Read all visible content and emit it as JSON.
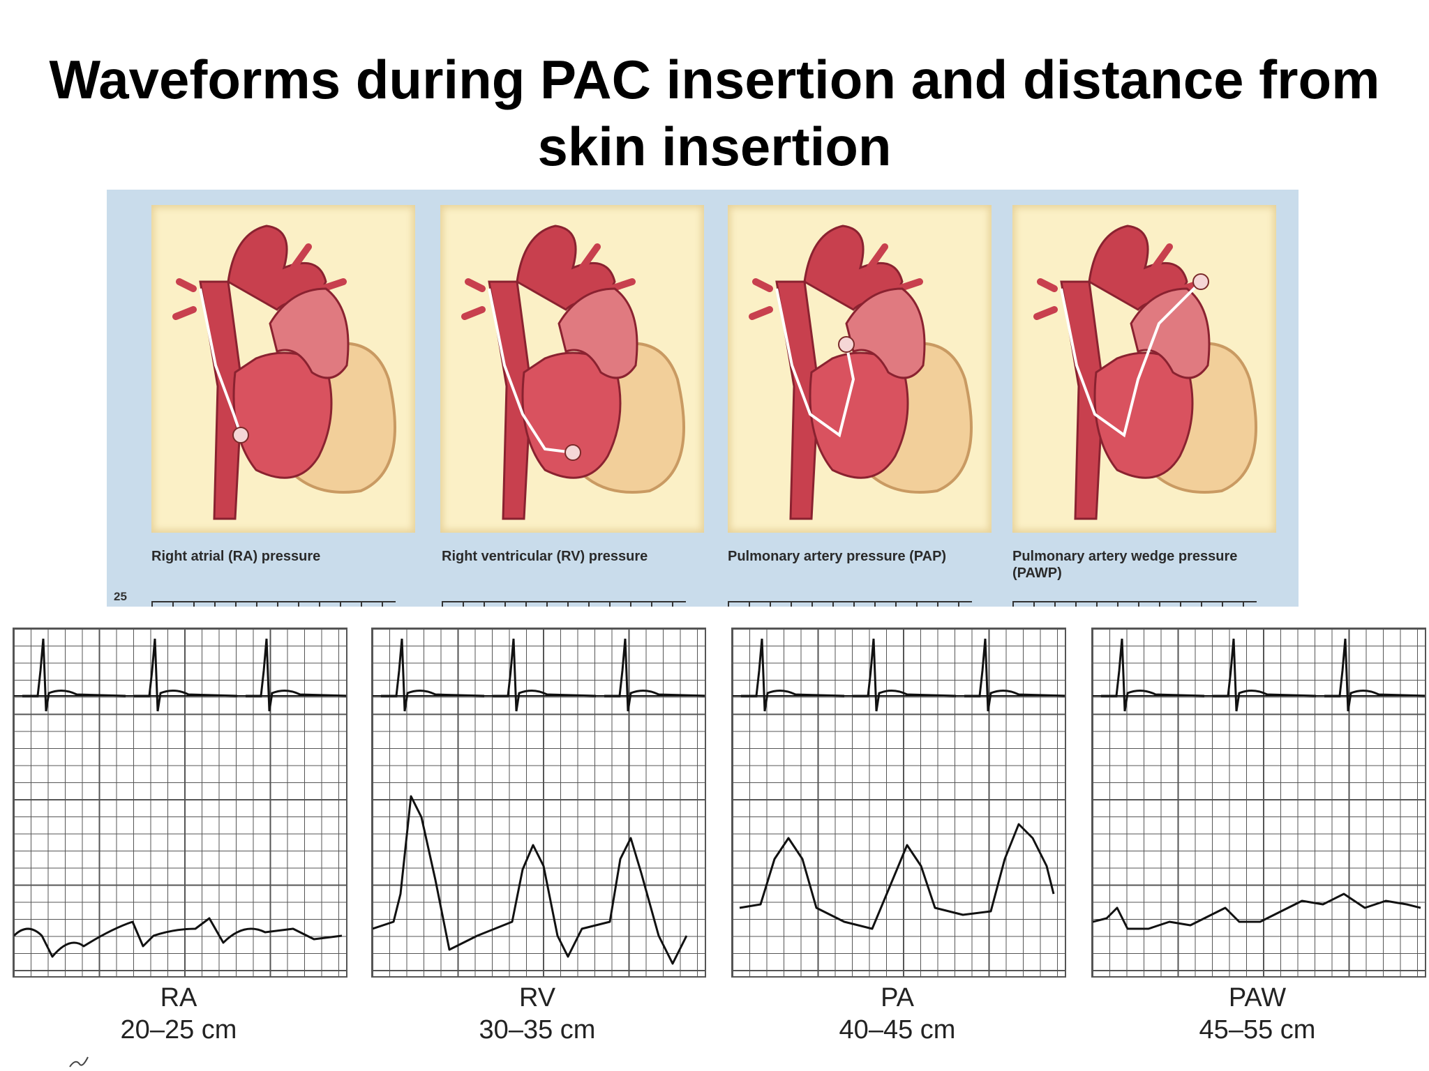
{
  "title": "Waveforms during PAC insertion and distance from skin insertion",
  "illustration": {
    "panels": [
      {
        "caption": "Right atrial (RA) pressure"
      },
      {
        "caption": "Right ventricular (RV) pressure"
      },
      {
        "caption": "Pulmonary artery pressure (PAP)"
      },
      {
        "caption": "Pulmonary artery wedge pressure (PAWP)"
      }
    ],
    "axis_tick": "25"
  },
  "waveforms": [
    {
      "name": "RA",
      "distance": "20–25 cm"
    },
    {
      "name": "RV",
      "distance": "30–35 cm"
    },
    {
      "name": "PA",
      "distance": "40–45 cm"
    },
    {
      "name": "PAW",
      "distance": "45–55 cm"
    }
  ],
  "colors": {
    "heart": "#c8404e",
    "heart_light": "#e07a80",
    "panel_bg": "#fbf0c6",
    "illus_bg": "#c9dceb",
    "grid": "#555555",
    "trace": "#111111"
  }
}
